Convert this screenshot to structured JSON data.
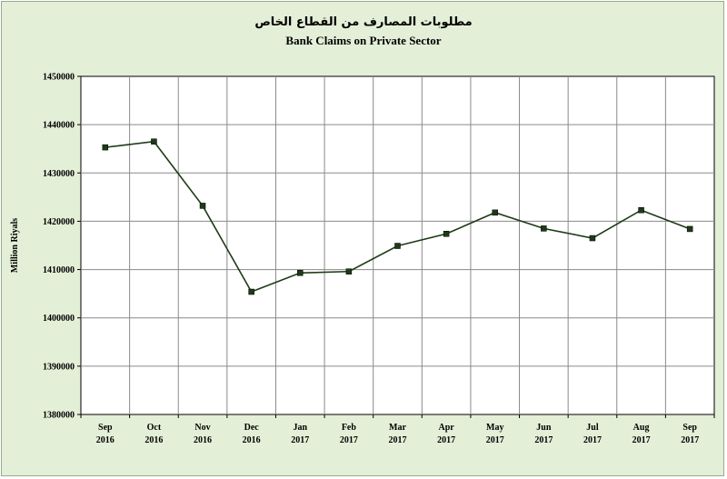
{
  "title_ar": "مطلوبات المصارف من القطاع الخاص",
  "title_en": "Bank Claims on Private Sector",
  "chart_data": {
    "type": "line",
    "title": "Bank Claims on Private Sector",
    "ylabel": "Million Riyals",
    "xlabel": "",
    "ylim": [
      1380000,
      1450000
    ],
    "yticks": [
      1380000,
      1390000,
      1400000,
      1410000,
      1420000,
      1430000,
      1440000,
      1450000
    ],
    "categories": [
      [
        "Sep",
        "2016"
      ],
      [
        "Oct",
        "2016"
      ],
      [
        "Nov",
        "2016"
      ],
      [
        "Dec",
        "2016"
      ],
      [
        "Jan",
        "2017"
      ],
      [
        "Feb",
        "2017"
      ],
      [
        "Mar",
        "2017"
      ],
      [
        "Apr",
        "2017"
      ],
      [
        "May",
        "2017"
      ],
      [
        "Jun",
        "2017"
      ],
      [
        "Jul",
        "2017"
      ],
      [
        "Aug",
        "2017"
      ],
      [
        "Sep",
        "2017"
      ]
    ],
    "values": [
      1435300,
      1436500,
      1423200,
      1405400,
      1409300,
      1409600,
      1414900,
      1417400,
      1421800,
      1418500,
      1416500,
      1422300,
      1418400
    ],
    "grid": true,
    "line_color": "#1e3a17",
    "marker_color": "#1e3a17",
    "plot_background": "#ffffff",
    "background": "#e3efd7"
  }
}
